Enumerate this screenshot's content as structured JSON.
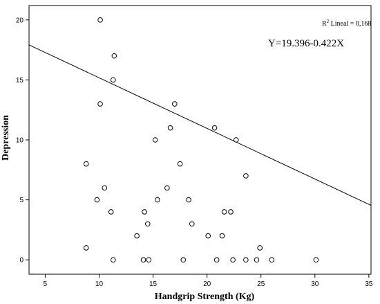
{
  "chart_data": {
    "type": "scatter",
    "title": "",
    "xlabel": "Handgrip Strength (Kg)",
    "ylabel": "Depression",
    "xlim": [
      3.5,
      35.2
    ],
    "ylim": [
      -1.2,
      21.2
    ],
    "x_ticks": [
      5,
      10,
      15,
      20,
      25,
      30,
      35
    ],
    "y_ticks": [
      0,
      5,
      10,
      15,
      20
    ],
    "grid": false,
    "legend": "none",
    "r2_prefix": "R",
    "r2_sup": "2",
    "r2_rest": " Lineal = 0,168",
    "equation": "Y=19.396-0.422X",
    "regression": {
      "intercept": 19.396,
      "slope": -0.422
    },
    "marker_color": "#000000",
    "points": [
      {
        "x": 10.1,
        "y": 20
      },
      {
        "x": 11.4,
        "y": 17
      },
      {
        "x": 11.3,
        "y": 15
      },
      {
        "x": 10.1,
        "y": 13
      },
      {
        "x": 17.0,
        "y": 13
      },
      {
        "x": 16.6,
        "y": 11
      },
      {
        "x": 20.7,
        "y": 11
      },
      {
        "x": 15.2,
        "y": 10
      },
      {
        "x": 22.7,
        "y": 10
      },
      {
        "x": 8.8,
        "y": 8
      },
      {
        "x": 17.5,
        "y": 8
      },
      {
        "x": 23.6,
        "y": 7
      },
      {
        "x": 10.5,
        "y": 6
      },
      {
        "x": 16.3,
        "y": 6
      },
      {
        "x": 9.8,
        "y": 5
      },
      {
        "x": 15.4,
        "y": 5
      },
      {
        "x": 18.3,
        "y": 5
      },
      {
        "x": 11.1,
        "y": 4
      },
      {
        "x": 14.2,
        "y": 4
      },
      {
        "x": 21.6,
        "y": 4
      },
      {
        "x": 22.2,
        "y": 4
      },
      {
        "x": 14.5,
        "y": 3
      },
      {
        "x": 18.6,
        "y": 3
      },
      {
        "x": 13.5,
        "y": 2
      },
      {
        "x": 20.1,
        "y": 2
      },
      {
        "x": 21.4,
        "y": 2
      },
      {
        "x": 8.8,
        "y": 1
      },
      {
        "x": 24.9,
        "y": 1
      },
      {
        "x": 11.3,
        "y": 0
      },
      {
        "x": 14.1,
        "y": 0
      },
      {
        "x": 14.6,
        "y": 0
      },
      {
        "x": 17.8,
        "y": 0
      },
      {
        "x": 20.9,
        "y": 0
      },
      {
        "x": 22.4,
        "y": 0
      },
      {
        "x": 23.6,
        "y": 0
      },
      {
        "x": 24.6,
        "y": 0
      },
      {
        "x": 26.0,
        "y": 0
      },
      {
        "x": 30.1,
        "y": 0
      }
    ]
  }
}
